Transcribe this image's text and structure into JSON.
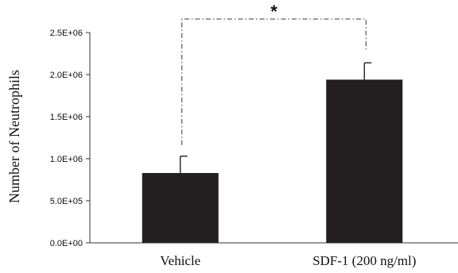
{
  "chart_data": {
    "type": "bar",
    "title": "",
    "xlabel": "",
    "ylabel": "Number of Neutrophils",
    "ylim": [
      0,
      2500000
    ],
    "y_ticks": [
      0,
      500000,
      1000000,
      1500000,
      2000000,
      2500000
    ],
    "y_tick_labels": [
      "0.0E+00",
      "5.0E+05",
      "1.0E+06",
      "1.5E+06",
      "2.0E+06",
      "2.5E+06"
    ],
    "categories": [
      "Vehicle",
      "SDF-1 (200 ng/ml)"
    ],
    "values": [
      830000,
      1940000
    ],
    "error_upper": [
      200000,
      200000
    ],
    "bar_color": "#231f20",
    "grid": false,
    "annotations": [
      {
        "type": "significance-bracket",
        "between": [
          "Vehicle",
          "SDF-1 (200 ng/ml)"
        ],
        "label": "*",
        "line_style": "dash-dot"
      }
    ]
  }
}
